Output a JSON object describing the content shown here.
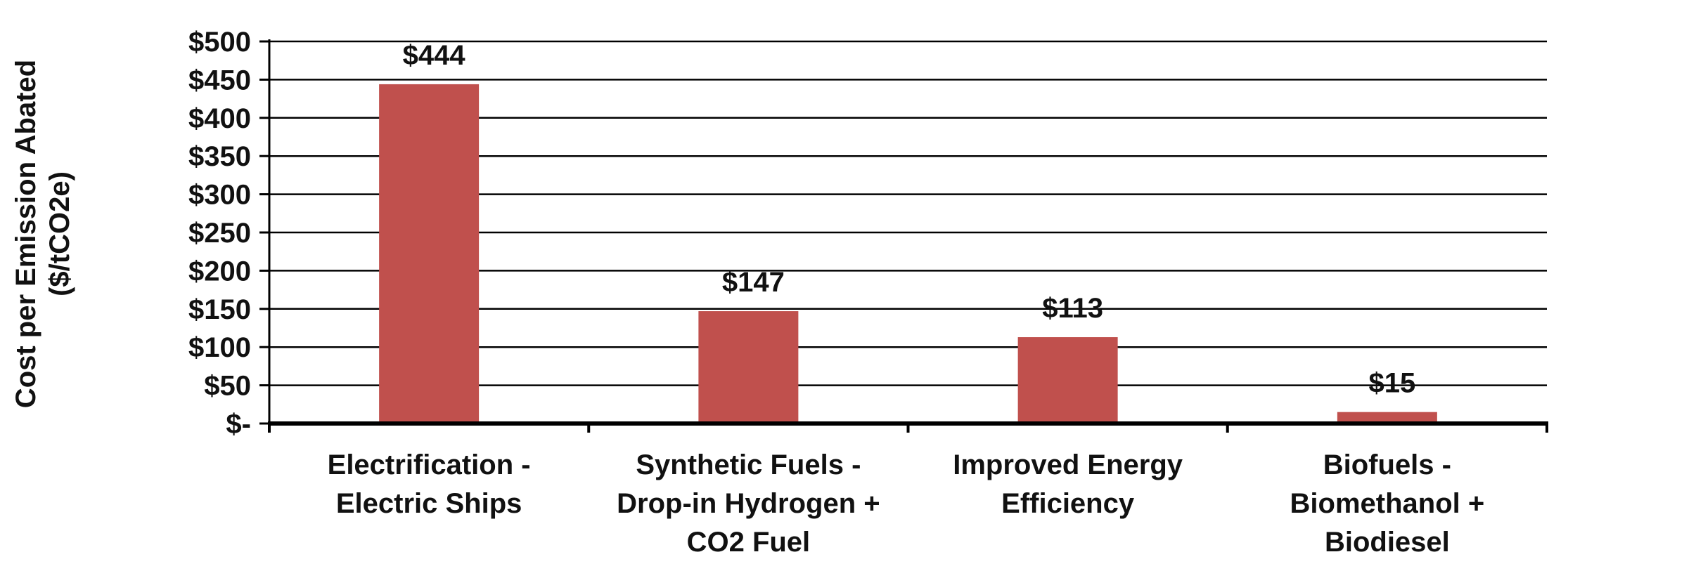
{
  "chart_data": {
    "type": "bar",
    "categories": [
      [
        "Electrification -",
        "Electric Ships"
      ],
      [
        "Synthetic Fuels -",
        "Drop-in Hydrogen +",
        "CO2 Fuel"
      ],
      [
        "Improved Energy",
        "Efficiency"
      ],
      [
        "Biofuels -",
        "Biomethanol +",
        "Biodiesel"
      ]
    ],
    "values": [
      444,
      147,
      113,
      15
    ],
    "data_labels": [
      "$444",
      "$147",
      "$113",
      "$15"
    ],
    "ylabel": [
      "Cost per Emission Abated",
      "($/tCO2e)"
    ],
    "yticks": [
      0,
      50,
      100,
      150,
      200,
      250,
      300,
      350,
      400,
      450,
      500
    ],
    "ytick_labels": [
      "$-",
      "$50",
      "$100",
      "$150",
      "$200",
      "$250",
      "$300",
      "$350",
      "$400",
      "$450",
      "$500"
    ],
    "ylim": [
      0,
      500
    ],
    "grid": true,
    "legend": "none",
    "bar_color": "#c0504d"
  }
}
